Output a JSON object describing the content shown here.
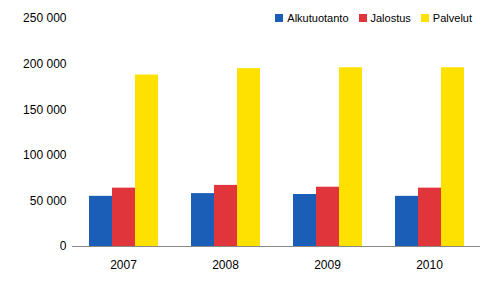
{
  "chart_data": {
    "type": "bar",
    "categories": [
      "2007",
      "2008",
      "2009",
      "2010"
    ],
    "series": [
      {
        "name": "Alkutuotanto",
        "color": "#1a5eb8",
        "values": [
          55000,
          58000,
          57000,
          55000
        ]
      },
      {
        "name": "Jalostus",
        "color": "#e0353a",
        "values": [
          64000,
          67000,
          65000,
          64000
        ]
      },
      {
        "name": "Palvelut",
        "color": "#ffe100",
        "values": [
          188000,
          195000,
          196000,
          196000
        ]
      }
    ],
    "ylim": [
      0,
      250000
    ],
    "yticks": [
      0,
      {
        "value": 50000,
        "label": "50 000"
      },
      {
        "value": 100000,
        "label": "100 000"
      },
      {
        "value": 150000,
        "label": "150 000"
      },
      {
        "value": 200000,
        "label": "200 000"
      },
      {
        "value": 250000,
        "label": "250 000"
      }
    ],
    "grid": false,
    "legend": "top-right"
  }
}
